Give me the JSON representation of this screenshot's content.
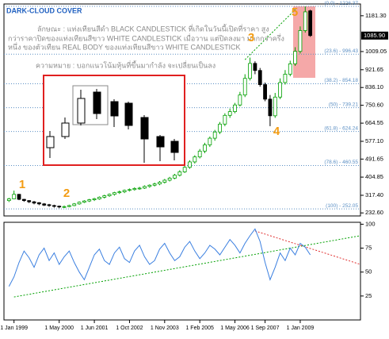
{
  "chart_data": [
    {
      "type": "candlestick",
      "title": "DARK-CLOUD COVER",
      "description": [
        "ลักษณะ : แท่งเทียนสีดำ BLACK CANDLESTICK ที่เกิดในวันนี้เปิดที่ราคา สูง",
        "กว่าราคาปิดของแท่งเทียนสีขาว WHITE CANDLESTICK เมื่อวาน แต่ปิดลงมา มากกว่าครึ่ง",
        "หนึ่ง ของตัวเทียน REAL BODY ของแท่งเทียนสีขาว WHITE CANDLESTICK",
        "ความหมาย : บอกแนวโน้มหุ้นที่ขึ้นมากำลัง จะเปลี่ยนเป็นลง"
      ],
      "markers": [
        "1",
        "2",
        "3",
        "4",
        "5"
      ],
      "open": [
        292,
        300,
        322,
        298,
        292,
        286,
        282,
        276,
        272,
        268,
        265,
        262,
        263,
        268,
        276,
        284,
        290,
        296,
        300,
        308,
        315,
        322,
        330,
        334,
        341,
        345,
        350,
        352,
        360,
        366,
        372,
        380,
        390,
        400,
        414,
        430,
        452,
        478,
        502,
        530,
        560,
        592,
        622,
        660,
        702,
        720,
        752,
        800,
        880,
        952,
        918,
        850,
        780,
        700,
        790,
        860,
        900,
        950,
        1010,
        1110,
        1205
      ],
      "high": [
        305,
        340,
        324,
        300,
        294,
        290,
        284,
        280,
        276,
        272,
        268,
        268,
        272,
        280,
        288,
        294,
        300,
        305,
        312,
        320,
        326,
        334,
        340,
        345,
        350,
        356,
        358,
        365,
        370,
        378,
        386,
        396,
        406,
        420,
        438,
        460,
        486,
        510,
        540,
        570,
        600,
        632,
        670,
        712,
        735,
        762,
        815,
        900,
        980,
        962,
        930,
        860,
        800,
        810,
        880,
        920,
        965,
        1030,
        1130,
        1226,
        1210
      ],
      "low": [
        285,
        298,
        294,
        286,
        280,
        274,
        270,
        266,
        262,
        258,
        255,
        256,
        260,
        265,
        272,
        280,
        285,
        290,
        296,
        302,
        310,
        316,
        324,
        328,
        336,
        340,
        344,
        348,
        354,
        360,
        366,
        374,
        384,
        395,
        408,
        425,
        445,
        470,
        495,
        520,
        550,
        580,
        612,
        650,
        690,
        712,
        745,
        790,
        870,
        900,
        840,
        770,
        650,
        690,
        780,
        850,
        890,
        940,
        1000,
        1100,
        1080
      ],
      "close": [
        300,
        322,
        298,
        292,
        286,
        280,
        276,
        270,
        268,
        265,
        262,
        263,
        268,
        276,
        284,
        290,
        296,
        301,
        308,
        315,
        322,
        330,
        334,
        341,
        345,
        350,
        352,
        360,
        366,
        372,
        380,
        390,
        400,
        414,
        430,
        452,
        478,
        502,
        530,
        560,
        592,
        622,
        660,
        702,
        720,
        752,
        800,
        880,
        952,
        918,
        850,
        780,
        700,
        790,
        860,
        900,
        950,
        1010,
        1110,
        1200,
        1086
      ],
      "up_color": "#00a000",
      "down_color": "#000000",
      "xlim": [
        -1,
        70
      ],
      "ylim": [
        218,
        1238
      ],
      "yticks": [
        {
          "value": 1181.3,
          "label": "1181.30"
        },
        1009.05,
        921.65,
        {
          "value": 836.1,
          "label": "836.10"
        },
        {
          "value": 750.6,
          "label": "750.60"
        },
        664.55,
        {
          "value": 577.1,
          "label": "577.10"
        },
        491.65,
        404.85,
        {
          "value": 317.4,
          "label": "317.40"
        },
        {
          "value": 232.6,
          "label": "232.60"
        }
      ],
      "current_price": {
        "value": 1085.9,
        "label": "1085.90"
      },
      "fibonacci": [
        {
          "value": 1226.37,
          "label": "(0.0) - 1226.37"
        },
        {
          "value": 996.43,
          "label": "(23.6) - 996.43"
        },
        {
          "value": 854.18,
          "label": "(38.2) - 854.18"
        },
        {
          "value": 739.21,
          "label": "(50) - 739.21"
        },
        {
          "value": 624.24,
          "label": "(61.8) - 624.24"
        },
        {
          "value": 460.55,
          "label": "(78.6) - 460.55"
        },
        {
          "value": 252.05,
          "label": "(100) - 252.05"
        }
      ],
      "fib_color": "#5b8fc4",
      "trendlines": [
        {
          "color": "#00a000",
          "x": [
            47,
            57
          ],
          "y": [
            970,
            1211
          ]
        }
      ]
    },
    {
      "type": "line",
      "values": [
        35,
        45,
        60,
        72,
        65,
        55,
        68,
        75,
        62,
        70,
        58,
        66,
        72,
        60,
        50,
        42,
        55,
        68,
        74,
        62,
        58,
        70,
        76,
        64,
        60,
        72,
        78,
        66,
        58,
        62,
        74,
        80,
        70,
        62,
        66,
        76,
        82,
        72,
        64,
        70,
        78,
        74,
        68,
        76,
        84,
        78,
        70,
        80,
        88,
        95,
        82,
        60,
        42,
        55,
        70,
        62,
        75,
        68,
        80,
        76,
        68
      ],
      "color": "#3a7fe0",
      "xlim": [
        -1,
        70
      ],
      "ylim": [
        0,
        102
      ],
      "yticks": [
        100,
        75,
        50,
        25
      ],
      "xticks": [
        {
          "value": 1,
          "label": "1 Jan 1999"
        },
        {
          "value": 10,
          "label": "1 May 2000"
        },
        {
          "value": 17,
          "label": "1 Jun 2001"
        },
        {
          "value": 24,
          "label": "1 Oct 2002"
        },
        {
          "value": 31,
          "label": "1 Nov 2003"
        },
        {
          "value": 38,
          "label": "1 Feb 2005"
        },
        {
          "value": 45,
          "label": "1 May 2006"
        },
        {
          "value": 51,
          "label": "1 Sep 2007"
        },
        {
          "value": 58,
          "label": "1 Jan 2009"
        }
      ],
      "trendlines": [
        {
          "color": "#00a000",
          "x": [
            1,
            70
          ],
          "y": [
            24,
            88
          ]
        },
        {
          "color": "#e03030",
          "x": [
            49,
            70
          ],
          "y": [
            93,
            58
          ]
        }
      ]
    }
  ]
}
